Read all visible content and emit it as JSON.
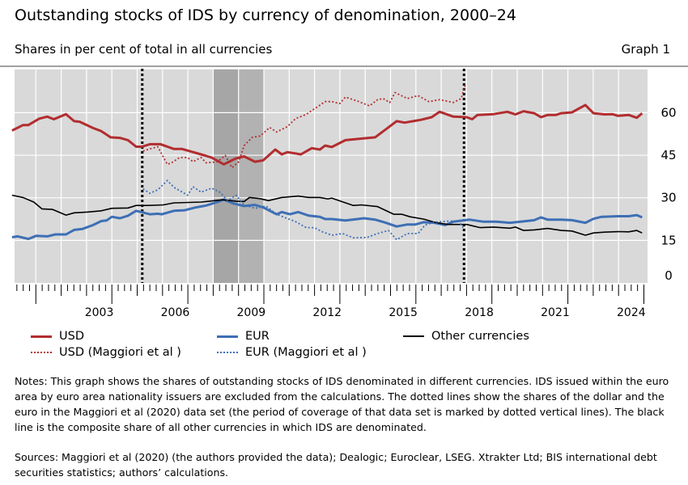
{
  "header": {
    "title": "Outstanding stocks of IDS by currency of denomination, 2000–24",
    "subtitle": "Shares in per cent of total in all currencies",
    "graph_label": "Graph 1"
  },
  "chart_data": {
    "type": "line",
    "title": "Outstanding stocks of IDS by currency of denomination, 2000–24",
    "ylabel": "Shares in per cent of total in all currencies",
    "xlim": [
      2000,
      2025
    ],
    "ylim": [
      0,
      75
    ],
    "y_ticks": [
      0,
      15,
      30,
      45,
      60
    ],
    "x_tick_labels": [
      "2003",
      "2006",
      "2009",
      "2012",
      "2015",
      "2018",
      "2021",
      "2024"
    ],
    "grid": true,
    "y_axis_side": "right",
    "legend_position": "bottom",
    "shaded_periods": [
      [
        2008,
        2009
      ],
      [
        2009,
        2010
      ]
    ],
    "vertical_markers": [
      2005.2,
      2017.9
    ],
    "series": [
      {
        "name": "USD",
        "style": "solid",
        "color": "#b22d2f",
        "x": [
          2000.06,
          2000.49,
          2000.7,
          2001.13,
          2001.45,
          2001.71,
          2002.19,
          2002.51,
          2002.73,
          2003.26,
          2003.58,
          2003.95,
          2004.32,
          2004.64,
          2004.96,
          2005.18,
          2005.5,
          2005.92,
          2006.45,
          2006.77,
          2007.52,
          2007.94,
          2008.42,
          2008.9,
          2009.22,
          2009.65,
          2009.97,
          2010.45,
          2010.71,
          2010.93,
          2011.46,
          2011.89,
          2012.21,
          2012.42,
          2012.68,
          2013.22,
          2013.75,
          2014.39,
          2014.81,
          2015.24,
          2015.56,
          2016.2,
          2016.62,
          2016.94,
          2017.48,
          2018.01,
          2018.22,
          2018.43,
          2019.07,
          2019.61,
          2019.93,
          2020.25,
          2020.67,
          2020.94,
          2021.2,
          2021.52,
          2021.74,
          2022.16,
          2022.69,
          2023.01,
          2023.44,
          2023.76,
          2023.97,
          2024.4,
          2024.72,
          2024.93
        ],
        "y": [
          53.7,
          55.6,
          55.6,
          57.9,
          58.6,
          57.7,
          59.5,
          57.0,
          56.8,
          54.6,
          53.5,
          51.3,
          51.1,
          50.3,
          48.0,
          48.0,
          48.9,
          48.9,
          47.2,
          47.2,
          45.3,
          44.2,
          41.8,
          43.9,
          44.6,
          42.7,
          43.2,
          47.0,
          45.3,
          46.1,
          45.3,
          47.5,
          47.0,
          48.4,
          47.9,
          50.3,
          50.8,
          51.3,
          54.1,
          57.0,
          56.5,
          57.5,
          58.4,
          60.3,
          58.6,
          58.4,
          57.7,
          59.2,
          59.5,
          60.3,
          59.4,
          60.5,
          59.8,
          58.4,
          59.2,
          59.2,
          59.8,
          60.1,
          62.7,
          59.8,
          59.4,
          59.5,
          58.9,
          59.2,
          58.2,
          59.8
        ]
      },
      {
        "name": "EUR",
        "style": "solid",
        "color": "#3d6fb5",
        "x": [
          2000.06,
          2000.28,
          2000.7,
          2001.02,
          2001.45,
          2001.77,
          2002.19,
          2002.51,
          2002.83,
          2003.26,
          2003.58,
          2003.79,
          2004.0,
          2004.32,
          2004.64,
          2004.96,
          2005.28,
          2005.5,
          2005.81,
          2005.97,
          2006.45,
          2006.88,
          2007.31,
          2007.73,
          2008.16,
          2008.42,
          2008.8,
          2009.22,
          2009.65,
          2009.97,
          2010.5,
          2010.71,
          2011.03,
          2011.35,
          2011.78,
          2012.21,
          2012.42,
          2012.68,
          2013.22,
          2013.96,
          2014.39,
          2014.81,
          2015.24,
          2015.66,
          2015.98,
          2016.3,
          2016.73,
          2017.16,
          2017.48,
          2018.11,
          2018.65,
          2019.18,
          2019.71,
          2020.14,
          2020.67,
          2020.94,
          2021.2,
          2021.74,
          2022.16,
          2022.69,
          2023.01,
          2023.33,
          2023.97,
          2024.4,
          2024.72,
          2024.93
        ],
        "y": [
          16.1,
          16.4,
          15.5,
          16.6,
          16.4,
          17.1,
          17.1,
          18.7,
          19.0,
          20.4,
          21.8,
          22.0,
          23.3,
          22.8,
          23.7,
          25.4,
          24.7,
          24.2,
          24.4,
          24.2,
          25.4,
          25.6,
          26.6,
          27.3,
          28.5,
          29.4,
          28.0,
          27.1,
          27.5,
          26.6,
          24.2,
          25.0,
          24.2,
          25.0,
          23.7,
          23.3,
          22.5,
          22.5,
          22.0,
          22.8,
          22.3,
          21.2,
          19.9,
          20.6,
          20.6,
          21.4,
          21.2,
          20.4,
          21.6,
          22.3,
          21.6,
          21.6,
          21.2,
          21.6,
          22.1,
          23.1,
          22.3,
          22.3,
          22.1,
          21.2,
          22.6,
          23.3,
          23.5,
          23.5,
          23.9,
          23.1
        ]
      },
      {
        "name": "Other currencies",
        "style": "solid",
        "color": "#000000",
        "x": [
          2000.06,
          2000.49,
          2000.92,
          2001.24,
          2001.66,
          2002.19,
          2002.51,
          2003.05,
          2003.58,
          2004.0,
          2004.64,
          2004.96,
          2005.39,
          2006.03,
          2006.45,
          2007.52,
          2008.37,
          2008.9,
          2009.22,
          2009.43,
          2009.86,
          2010.18,
          2010.71,
          2011.35,
          2011.78,
          2012.21,
          2012.52,
          2012.68,
          2013.53,
          2013.85,
          2014.49,
          2015.13,
          2015.45,
          2015.77,
          2016.3,
          2016.73,
          2017.26,
          2018.01,
          2018.54,
          2019.07,
          2019.71,
          2019.93,
          2020.25,
          2020.67,
          2021.2,
          2021.74,
          2022.16,
          2022.69,
          2023.01,
          2023.44,
          2023.97,
          2024.4,
          2024.72,
          2024.93
        ],
        "y": [
          30.9,
          30.1,
          28.5,
          26.1,
          25.9,
          23.9,
          24.7,
          25.0,
          25.4,
          26.3,
          26.4,
          27.3,
          27.3,
          27.5,
          28.2,
          28.5,
          29.3,
          28.8,
          28.7,
          30.1,
          29.7,
          29.0,
          30.1,
          30.6,
          30.1,
          30.1,
          29.6,
          29.9,
          27.3,
          27.5,
          26.9,
          24.2,
          24.2,
          23.3,
          22.5,
          21.4,
          20.6,
          20.6,
          19.5,
          19.7,
          19.3,
          19.7,
          18.5,
          18.7,
          19.2,
          18.5,
          18.3,
          16.8,
          17.6,
          17.9,
          18.1,
          18.0,
          18.5,
          17.6
        ]
      },
      {
        "name": "USD (Maggiori et al )",
        "style": "dotted",
        "color": "#b22d2f",
        "x": [
          2005.23,
          2005.6,
          2005.81,
          2006.19,
          2006.35,
          2006.67,
          2006.99,
          2007.2,
          2007.52,
          2007.73,
          2008.16,
          2008.48,
          2008.74,
          2009.01,
          2009.22,
          2009.54,
          2009.86,
          2010.23,
          2010.5,
          2010.93,
          2011.25,
          2011.67,
          2011.99,
          2012.42,
          2012.68,
          2012.99,
          2013.22,
          2013.75,
          2014.17,
          2014.49,
          2014.71,
          2014.97,
          2015.18,
          2015.66,
          2016.09,
          2016.51,
          2016.94,
          2017.48,
          2017.79,
          2017.9,
          2017.95
        ],
        "y": [
          46.5,
          47.5,
          48.0,
          41.8,
          42.3,
          44.2,
          44.2,
          42.7,
          44.2,
          42.3,
          42.7,
          44.9,
          40.6,
          42.7,
          48.4,
          51.3,
          51.8,
          54.8,
          53.2,
          55.1,
          57.9,
          59.4,
          61.3,
          63.9,
          63.9,
          63.2,
          65.5,
          63.9,
          62.4,
          64.6,
          65.0,
          63.6,
          67.1,
          65.0,
          66.0,
          63.9,
          64.6,
          63.6,
          65.0,
          68.4,
          69.8
        ]
      },
      {
        "name": "EUR (Maggiori et al )",
        "style": "dotted",
        "color": "#3d6fb5",
        "x": [
          2005.23,
          2005.5,
          2005.81,
          2006.19,
          2006.45,
          2006.99,
          2007.2,
          2007.52,
          2007.94,
          2008.26,
          2008.58,
          2008.9,
          2009.22,
          2009.65,
          2010.08,
          2010.5,
          2011.25,
          2011.67,
          2011.99,
          2012.31,
          2012.68,
          2013.11,
          2013.53,
          2014.07,
          2014.49,
          2014.92,
          2015.24,
          2015.66,
          2016.09,
          2016.36,
          2016.73,
          2017.26,
          2017.69,
          2017.9
        ],
        "y": [
          33.2,
          31.6,
          32.8,
          36.1,
          33.7,
          30.9,
          33.9,
          32.0,
          33.4,
          32.0,
          29.0,
          30.9,
          27.5,
          26.3,
          27.1,
          24.2,
          21.6,
          19.5,
          19.5,
          18.0,
          16.8,
          17.4,
          15.9,
          16.0,
          17.4,
          18.5,
          15.2,
          17.4,
          17.4,
          20.4,
          21.4,
          21.8,
          21.8,
          19.0
        ]
      }
    ]
  },
  "notes": "Notes: This graph shows the shares of outstanding stocks of IDS denominated in different currencies. IDS issued within the euro area by euro area nationality issuers are excluded from the calculations. The dotted lines show the shares of the dollar and the euro in the Maggiori et al (2020) data set (the period of coverage of that data set is marked by dotted vertical lines). The black line is the composite share of all other currencies in which IDS are denominated.",
  "sources": "Sources:  Maggiori et al (2020) (the authors provided the data); Dealogic; Euroclear, LSEG. Xtrakter Ltd; BIS international debt securities statistics; authors’ calculations."
}
